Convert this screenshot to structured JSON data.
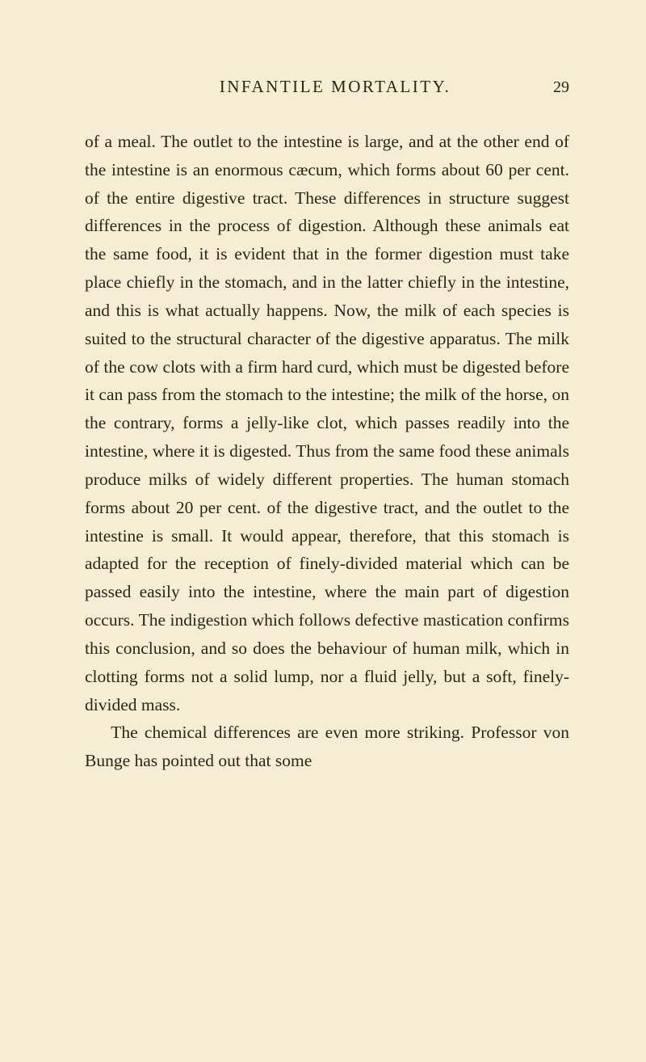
{
  "header": {
    "running_title": "INFANTILE MORTALITY.",
    "page_number": "29"
  },
  "paragraphs": [
    {
      "indent": false,
      "text": "of a meal. The outlet to the intestine is large, and at the other end of the intestine is an enormous cæcum, which forms about 60 per cent. of the entire digestive tract. These differences in struc­ture suggest differences in the process of digestion. Although these animals eat the same food, it is evident that in the former digestion must take place chiefly in the stomach, and in the latter chiefly in the intestine, and this is what actually happens. Now, the milk of each species is suited to the structural character of the digestive appa­ratus. The milk of the cow clots with a firm hard curd, which must be digested before it can pass from the stomach to the intestine; the milk of the horse, on the contrary, forms a jelly-like clot, which passes readily into the intestine, where it is digested. Thus from the same food these animals produce milks of widely different properties. The human stomach forms about 20 per cent. of the digestive tract, and the outlet to the intestine is small. It would appear, therefore, that this stomach is adapted for the reception of finely-divided material which can be passed easily into the intestine, where the main part of digestion occurs. The indigestion which follows defective mastication confirms this conclusion, and so does the behaviour of human milk, which in clotting forms not a solid lump, nor a fluid jelly, but a soft, finely-divided mass."
    },
    {
      "indent": true,
      "text": "The chemical differences are even more striking. Professor von Bunge has pointed out that some"
    }
  ],
  "colors": {
    "background": "#f5edd4",
    "text": "#2a2618"
  },
  "typography": {
    "body_fontsize": 21.5,
    "body_lineheight": 1.62,
    "title_fontsize": 21,
    "title_letterspacing": 2.5,
    "page_number_fontsize": 20
  }
}
